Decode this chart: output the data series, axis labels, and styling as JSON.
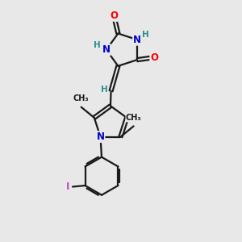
{
  "bg_color": "#e8e8e8",
  "bond_color": "#1a1a1a",
  "bond_width": 1.6,
  "atom_colors": {
    "O": "#ff0000",
    "N": "#0000cc",
    "H": "#2a9090",
    "I": "#cc44cc",
    "C": "#1a1a1a"
  },
  "font_size_atom": 8.5,
  "font_size_H": 7.5,
  "font_size_me": 7.0
}
